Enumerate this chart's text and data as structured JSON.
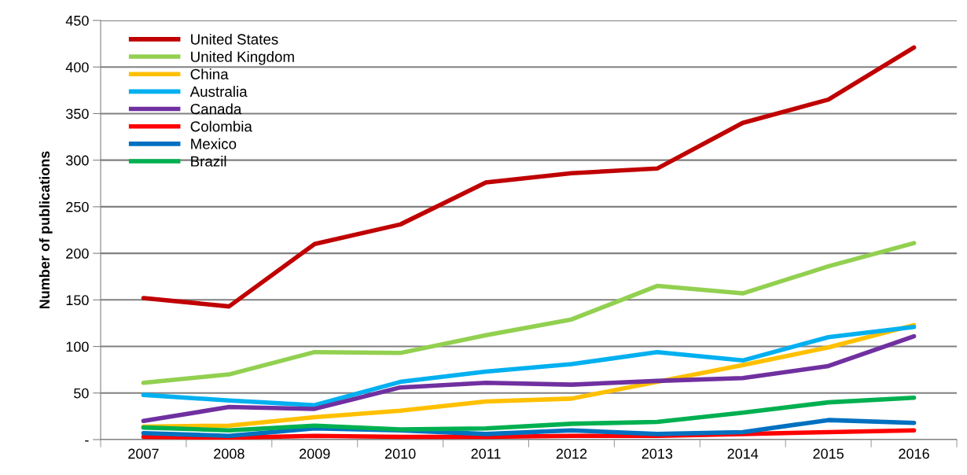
{
  "chart_data": {
    "type": "line",
    "ylabel": "Number of publications",
    "categories": [
      "2007",
      "2008",
      "2009",
      "2010",
      "2011",
      "2012",
      "2013",
      "2014",
      "2015",
      "2016"
    ],
    "series": [
      {
        "name": "United States",
        "color": "#c00000",
        "values": [
          152,
          143,
          210,
          231,
          276,
          286,
          291,
          340,
          365,
          421
        ]
      },
      {
        "name": "United Kingdom",
        "color": "#92d050",
        "values": [
          61,
          70,
          94,
          93,
          112,
          129,
          165,
          157,
          186,
          211
        ]
      },
      {
        "name": "China",
        "color": "#ffc000",
        "values": [
          14,
          15,
          24,
          31,
          41,
          44,
          62,
          80,
          99,
          123
        ]
      },
      {
        "name": "Australia",
        "color": "#00b0f0",
        "values": [
          48,
          42,
          37,
          62,
          73,
          81,
          94,
          85,
          110,
          121
        ]
      },
      {
        "name": "Canada",
        "color": "#7030a0",
        "values": [
          20,
          35,
          33,
          56,
          61,
          59,
          63,
          66,
          79,
          111
        ]
      },
      {
        "name": "Colombia",
        "color": "#ff0000",
        "values": [
          3,
          2,
          4,
          3,
          3,
          4,
          4,
          6,
          8,
          10
        ]
      },
      {
        "name": "Mexico",
        "color": "#0070c0",
        "values": [
          7,
          4,
          12,
          10,
          6,
          10,
          6,
          8,
          21,
          18
        ]
      },
      {
        "name": "Brazil",
        "color": "#00b050",
        "values": [
          13,
          10,
          15,
          11,
          12,
          17,
          19,
          29,
          40,
          45
        ]
      }
    ],
    "ylim": [
      0,
      450
    ],
    "yticks": [
      {
        "value": 0,
        "label": "-"
      },
      50,
      100,
      150,
      200,
      250,
      300,
      350,
      400,
      450
    ],
    "grid": "y",
    "legend": "top left",
    "marker": "none",
    "line_style": "solid"
  }
}
